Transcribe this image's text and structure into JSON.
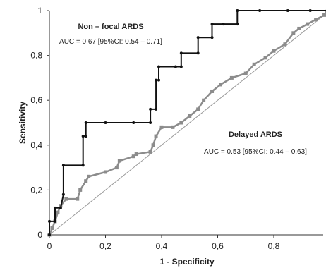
{
  "chart_data": {
    "type": "line",
    "xlabel": "1 - Specificity",
    "ylabel": "Sensitivity",
    "xlim": [
      0,
      1
    ],
    "ylim": [
      0,
      1
    ],
    "x_ticks": [
      "0",
      "0,2",
      "0,4",
      "0,6",
      "0,8"
    ],
    "y_ticks": [
      "0",
      "0,2",
      "0,4",
      "0,6",
      "0,8",
      "1"
    ],
    "grid": false,
    "annotations": [
      {
        "label": "Non – focal ARDS",
        "stat": "AUC = 0.67 [95%CI: 0.54 – 0.71]"
      },
      {
        "label": "Delayed ARDS",
        "stat": "AUC = 0.53 [95%CI: 0.44 – 0.63]"
      }
    ],
    "series": [
      {
        "color": "#111111",
        "marker": "dot",
        "x": [
          0,
          0,
          0.02,
          0.02,
          0.04,
          0.05,
          0.05,
          0.12,
          0.12,
          0.13,
          0.13,
          0.2,
          0.3,
          0.36,
          0.36,
          0.38,
          0.38,
          0.39,
          0.39,
          0.45,
          0.47,
          0.47,
          0.53,
          0.53,
          0.58,
          0.58,
          0.62,
          0.67,
          0.67,
          0.75,
          0.85,
          0.93,
          0.99
        ],
        "y": [
          0,
          0.06,
          0.06,
          0.12,
          0.12,
          0.18,
          0.31,
          0.31,
          0.44,
          0.44,
          0.5,
          0.5,
          0.5,
          0.5,
          0.56,
          0.56,
          0.69,
          0.69,
          0.75,
          0.75,
          0.75,
          0.81,
          0.81,
          0.88,
          0.88,
          0.94,
          0.94,
          0.94,
          1,
          1,
          1,
          1,
          1
        ]
      },
      {
        "color": "#8c8c8c",
        "marker": "square",
        "x": [
          0,
          0.01,
          0.02,
          0.03,
          0.04,
          0.06,
          0.1,
          0.11,
          0.13,
          0.14,
          0.2,
          0.24,
          0.25,
          0.3,
          0.31,
          0.36,
          0.37,
          0.38,
          0.4,
          0.44,
          0.47,
          0.5,
          0.53,
          0.55,
          0.58,
          0.61,
          0.65,
          0.7,
          0.73,
          0.77,
          0.8,
          0.84,
          0.87,
          0.89,
          0.92,
          0.95,
          0.98,
          0.99
        ],
        "y": [
          0,
          0.03,
          0.06,
          0.1,
          0.13,
          0.16,
          0.16,
          0.2,
          0.24,
          0.26,
          0.28,
          0.3,
          0.33,
          0.35,
          0.36,
          0.37,
          0.4,
          0.44,
          0.48,
          0.48,
          0.5,
          0.53,
          0.56,
          0.6,
          0.64,
          0.67,
          0.7,
          0.72,
          0.76,
          0.79,
          0.82,
          0.85,
          0.9,
          0.92,
          0.94,
          0.96,
          0.98,
          0.99
        ]
      },
      {
        "color": "#9a9a9a",
        "marker": "none",
        "x": [
          0,
          1
        ],
        "y": [
          0,
          1
        ]
      }
    ]
  }
}
